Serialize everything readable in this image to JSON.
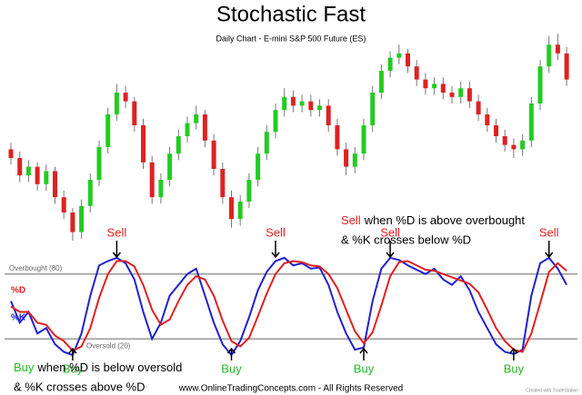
{
  "chart_data": [
    {
      "type": "candlestick",
      "title": "Stochastic Fast",
      "subtitle": "Daily Chart - E-mini S&P 500 Future (ES)",
      "up_color": "#22cc22",
      "down_color": "#dd2222",
      "ylim": [
        0,
        100
      ],
      "open": [
        44,
        40,
        32,
        36,
        28,
        34,
        22,
        15,
        6,
        18,
        30,
        45,
        60,
        70,
        66,
        55,
        38,
        22,
        30,
        42,
        50,
        56,
        60,
        48,
        35,
        22,
        12,
        20,
        30,
        42,
        52,
        62,
        68,
        64,
        66,
        62,
        64,
        55,
        44,
        36,
        42,
        55,
        70,
        80,
        86,
        88,
        82,
        76,
        72,
        74,
        70,
        68,
        72,
        66,
        60,
        55,
        50,
        46,
        44,
        48,
        65,
        82,
        92,
        88
      ],
      "high": [
        47,
        43,
        39,
        38,
        37,
        36,
        25,
        17,
        21,
        33,
        48,
        63,
        74,
        73,
        68,
        58,
        41,
        33,
        45,
        53,
        59,
        64,
        62,
        51,
        38,
        25,
        23,
        33,
        45,
        55,
        65,
        72,
        71,
        69,
        69,
        67,
        67,
        58,
        47,
        45,
        58,
        73,
        83,
        89,
        92,
        90,
        85,
        79,
        77,
        77,
        73,
        75,
        75,
        69,
        63,
        58,
        53,
        49,
        51,
        68,
        85,
        96,
        97,
        91
      ],
      "low": [
        37,
        29,
        29,
        25,
        25,
        19,
        12,
        2,
        3,
        15,
        27,
        42,
        57,
        63,
        52,
        35,
        19,
        19,
        27,
        39,
        47,
        53,
        45,
        32,
        19,
        8,
        9,
        17,
        27,
        39,
        49,
        59,
        61,
        61,
        59,
        59,
        52,
        41,
        32,
        33,
        39,
        52,
        67,
        77,
        83,
        79,
        73,
        69,
        69,
        67,
        65,
        65,
        63,
        57,
        52,
        47,
        43,
        40,
        41,
        45,
        62,
        79,
        85,
        73
      ],
      "close": [
        40,
        32,
        36,
        28,
        34,
        22,
        15,
        6,
        18,
        30,
        45,
        60,
        70,
        66,
        55,
        38,
        22,
        30,
        42,
        50,
        56,
        60,
        48,
        35,
        22,
        12,
        20,
        30,
        42,
        52,
        62,
        68,
        64,
        66,
        62,
        64,
        55,
        44,
        36,
        42,
        55,
        70,
        80,
        86,
        88,
        82,
        76,
        72,
        74,
        70,
        68,
        72,
        66,
        60,
        55,
        50,
        46,
        44,
        48,
        65,
        82,
        92,
        88,
        76
      ]
    },
    {
      "type": "line",
      "ylim": [
        0,
        100
      ],
      "series": [
        {
          "name": "%D",
          "color": "#e02020",
          "values": [
            50,
            45,
            45,
            35,
            33,
            23,
            18,
            9,
            13,
            30,
            58,
            80,
            92,
            92,
            87,
            70,
            47,
            33,
            38,
            55,
            70,
            78,
            75,
            60,
            37,
            18,
            13,
            21,
            41,
            62,
            80,
            90,
            92,
            91,
            88,
            87,
            80,
            67,
            47,
            27,
            16,
            26,
            51,
            78,
            91,
            92,
            88,
            84,
            83,
            80,
            77,
            74,
            71,
            63,
            47,
            30,
            18,
            10,
            8,
            25,
            53,
            82,
            90,
            83
          ]
        },
        {
          "name": "%K",
          "color": "#2020d0",
          "values": [
            55,
            35,
            45,
            25,
            30,
            15,
            8,
            5,
            25,
            60,
            88,
            92,
            95,
            90,
            75,
            45,
            20,
            35,
            60,
            70,
            80,
            85,
            60,
            35,
            15,
            5,
            18,
            40,
            65,
            82,
            92,
            95,
            88,
            90,
            85,
            86,
            70,
            45,
            25,
            10,
            12,
            55,
            85,
            95,
            93,
            88,
            84,
            80,
            85,
            75,
            70,
            78,
            65,
            45,
            30,
            15,
            8,
            6,
            10,
            60,
            90,
            95,
            85,
            70
          ]
        }
      ],
      "reference_lines": [
        {
          "label": "Overbought (80)",
          "value": 80
        },
        {
          "label": "Oversold (20)",
          "value": 20
        }
      ],
      "signals": [
        "Sell",
        "Sell",
        "Sell",
        "Sell",
        "Buy",
        "Buy",
        "Buy",
        "Buy"
      ],
      "sell_rule": [
        "Sell",
        "when %D is above overbought",
        "& %K crosses below %D"
      ],
      "buy_rule": [
        "Buy",
        "when %D is below oversold",
        "& %K crosses above %D"
      ]
    }
  ],
  "footer": "www.OnlineTradingConcepts.com - All Rights Reserved",
  "credit": "Created with TradeStation"
}
